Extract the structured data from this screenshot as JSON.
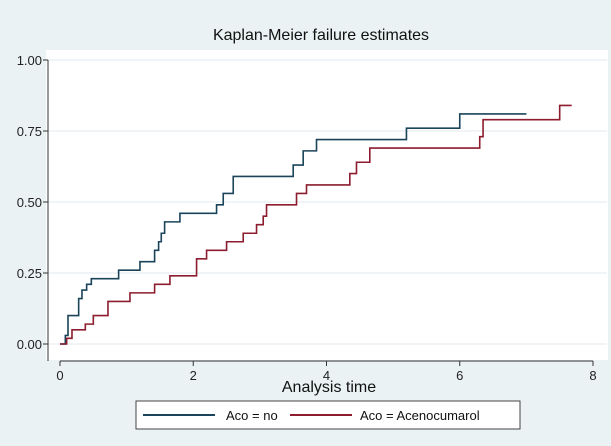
{
  "chart_data": {
    "type": "line",
    "step": true,
    "title": "Kaplan-Meier failure estimates",
    "xlabel": "Analysis time",
    "ylabel": "",
    "xlim": [
      0,
      8
    ],
    "ylim": [
      0,
      1
    ],
    "x_ticks": [
      0,
      2,
      4,
      6,
      8
    ],
    "y_ticks": [
      0,
      0.25,
      0.5,
      0.75,
      1
    ],
    "y_tick_labels": [
      "0.00",
      "0.25",
      "0.50",
      "0.75",
      "1.00"
    ],
    "grid": "horizontal",
    "legend_position": "bottom",
    "series": [
      {
        "name": "Aco = no",
        "color": "#1a4459",
        "x": [
          0,
          0.08,
          0.12,
          0.28,
          0.33,
          0.4,
          0.47,
          0.88,
          1.2,
          1.42,
          1.48,
          1.52,
          1.57,
          1.63,
          1.8,
          2.35,
          2.45,
          2.6,
          3.5,
          3.65,
          3.85,
          5.2,
          6.0,
          7.0
        ],
        "y": [
          0,
          0.03,
          0.1,
          0.16,
          0.19,
          0.21,
          0.23,
          0.26,
          0.29,
          0.33,
          0.36,
          0.39,
          0.43,
          0.43,
          0.46,
          0.49,
          0.53,
          0.59,
          0.63,
          0.68,
          0.72,
          0.76,
          0.81,
          0.81
        ]
      },
      {
        "name": "Aco = Acenocumarol",
        "color": "#8c1c2e",
        "x": [
          0,
          0.1,
          0.18,
          0.38,
          0.5,
          0.72,
          1.05,
          1.42,
          1.65,
          2.05,
          2.2,
          2.5,
          2.75,
          2.95,
          3.05,
          3.1,
          3.55,
          3.7,
          4.35,
          4.45,
          4.65,
          5.25,
          6.3,
          6.35,
          7.5,
          7.68
        ],
        "y": [
          0,
          0.02,
          0.05,
          0.07,
          0.1,
          0.15,
          0.18,
          0.21,
          0.24,
          0.3,
          0.33,
          0.36,
          0.39,
          0.42,
          0.45,
          0.49,
          0.53,
          0.56,
          0.6,
          0.64,
          0.69,
          0.69,
          0.73,
          0.79,
          0.84,
          0.84
        ]
      }
    ]
  }
}
